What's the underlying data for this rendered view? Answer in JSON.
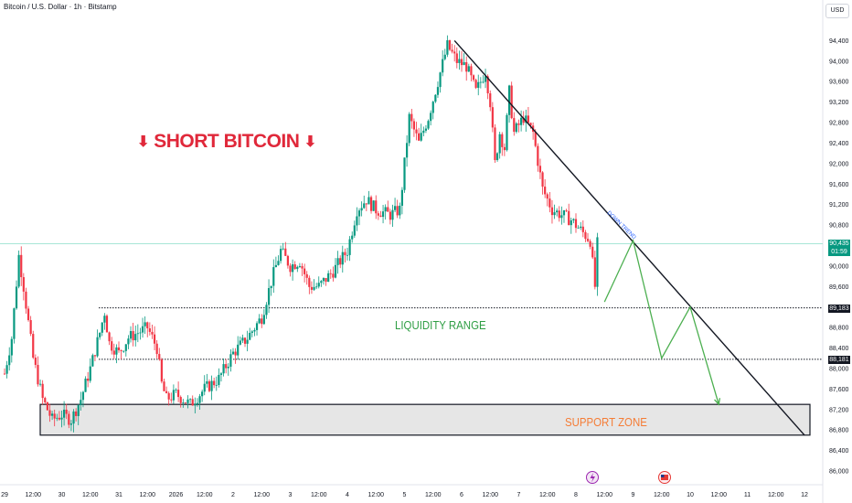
{
  "header": {
    "title": "Bitcoin / U.S. Dollar · 1h · Bitstamp",
    "currency": "USD"
  },
  "annotations": {
    "short_title": "SHORT BITCOIN",
    "down_arrow_glyph": "⬇",
    "liquidity_label": "LIQUIDITY RANGE",
    "support_label": "SUPPORT ZONE",
    "downtrend_label": "DOWN TREND"
  },
  "price_tags": {
    "current_price": "90,435",
    "countdown": "01:59",
    "upper_line": "89,183",
    "lower_line": "88,181"
  },
  "colors": {
    "up": "#089981",
    "down": "#f23645",
    "price_line": "#a8e6d6",
    "projection": "#4caf50",
    "short_title": "#e0283a",
    "support_fill": "#e6e6e6"
  },
  "icons": [
    "lightning-event-icon",
    "us-flag-event-icon"
  ],
  "chart_data": {
    "type": "candlestick",
    "ylim": [
      86000,
      94800
    ],
    "y_ticks": [
      94400,
      94000,
      93600,
      93200,
      92800,
      92400,
      92000,
      91600,
      91200,
      90800,
      90000,
      89600,
      88800,
      88400,
      88000,
      87600,
      87200,
      86800,
      86400,
      86000
    ],
    "x_tick_labels": [
      "29",
      "12:00",
      "30",
      "12:00",
      "31",
      "12:00",
      "2026",
      "12:00",
      "2",
      "12:00",
      "3",
      "12:00",
      "4",
      "12:00",
      "5",
      "12:00",
      "6",
      "12:00",
      "7",
      "12:00",
      "8",
      "12:00",
      "9",
      "12:00",
      "10",
      "12:00",
      "11",
      "12:00",
      "12"
    ],
    "close_path": [
      [
        "29 00:00",
        87900
      ],
      [
        "29 03:00",
        88600
      ],
      [
        "29 06:00",
        90200
      ],
      [
        "29 08:00",
        89600
      ],
      [
        "29 12:00",
        88200
      ],
      [
        "29 16:00",
        87400
      ],
      [
        "29 20:00",
        87000
      ],
      [
        "30 00:00",
        87100
      ],
      [
        "30 04:00",
        87000
      ],
      [
        "30 08:00",
        87400
      ],
      [
        "30 12:00",
        88000
      ],
      [
        "30 16:00",
        88700
      ],
      [
        "30 18:00",
        89100
      ],
      [
        "30 20:00",
        88500
      ],
      [
        "31 00:00",
        88300
      ],
      [
        "31 04:00",
        88600
      ],
      [
        "31 08:00",
        88700
      ],
      [
        "31 12:00",
        88800
      ],
      [
        "31 16:00",
        88400
      ],
      [
        "31 18:00",
        87700
      ],
      [
        "31 20:00",
        87400
      ],
      [
        "1 00:00",
        87500
      ],
      [
        "1 06:00",
        87300
      ],
      [
        "1 12:00",
        87600
      ],
      [
        "1 18:00",
        87800
      ],
      [
        "2 00:00",
        88300
      ],
      [
        "2 06:00",
        88600
      ],
      [
        "2 12:00",
        89000
      ],
      [
        "2 16:00",
        89700
      ],
      [
        "2 20:00",
        90300
      ],
      [
        "3 00:00",
        90000
      ],
      [
        "3 04:00",
        90100
      ],
      [
        "3 08:00",
        89600
      ],
      [
        "3 12:00",
        89600
      ],
      [
        "3 18:00",
        89900
      ],
      [
        "4 00:00",
        90300
      ],
      [
        "4 04:00",
        91100
      ],
      [
        "4 08:00",
        91300
      ],
      [
        "4 12:00",
        91100
      ],
      [
        "4 18:00",
        91000
      ],
      [
        "4 22:00",
        91100
      ],
      [
        "5 02:00",
        92900
      ],
      [
        "5 06:00",
        92400
      ],
      [
        "5 10:00",
        92900
      ],
      [
        "5 14:00",
        93600
      ],
      [
        "5 18:00",
        94300
      ],
      [
        "5 22:00",
        94000
      ],
      [
        "6 02:00",
        93900
      ],
      [
        "6 06:00",
        93400
      ],
      [
        "6 10:00",
        93800
      ],
      [
        "6 12:00",
        93200
      ],
      [
        "6 14:00",
        92000
      ],
      [
        "6 16:00",
        92600
      ],
      [
        "6 18:00",
        92300
      ],
      [
        "6 20:00",
        93400
      ],
      [
        "6 22:00",
        92600
      ],
      [
        "7 02:00",
        92900
      ],
      [
        "7 06:00",
        92600
      ],
      [
        "7 10:00",
        91500
      ],
      [
        "7 14:00",
        91100
      ],
      [
        "7 18:00",
        91000
      ],
      [
        "7 22:00",
        90900
      ],
      [
        "8 02:00",
        90700
      ],
      [
        "8 06:00",
        90500
      ],
      [
        "8 08:00",
        89600
      ],
      [
        "8 09:00",
        90435
      ]
    ],
    "support_zone": [
      86700,
      87300
    ],
    "liquidity_range": [
      88181,
      89183
    ],
    "current_price": 90435,
    "downtrend_line": [
      [
        "5 21:00",
        94400
      ],
      [
        "12 00:00",
        86700
      ]
    ],
    "projection_path": [
      [
        "8 12:00",
        89300
      ],
      [
        "9 00:00",
        90500
      ],
      [
        "9 12:00",
        88200
      ],
      [
        "10 00:00",
        89200
      ],
      [
        "10 12:00",
        87300
      ]
    ]
  }
}
